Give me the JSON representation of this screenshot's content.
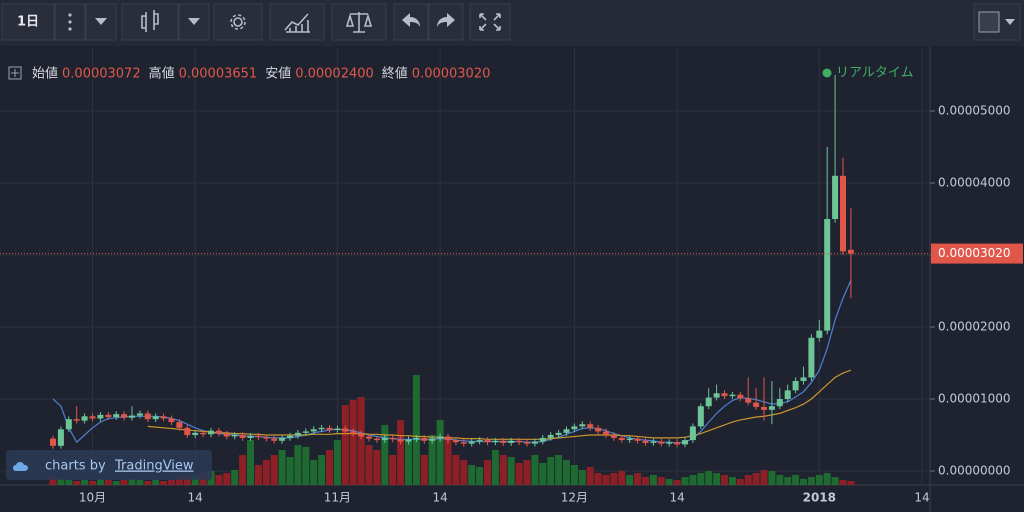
{
  "chart_data": {
    "type": "candlestick",
    "interval": "1日",
    "legend": [
      {
        "label": "始値",
        "value": "0.00003072"
      },
      {
        "label": "高値",
        "value": "0.00003651"
      },
      {
        "label": "安値",
        "value": "0.00002400"
      },
      {
        "label": "終値",
        "value": "0.00003020"
      }
    ],
    "realtime_label": "リアルタイム",
    "watermark": {
      "prefix": "charts by",
      "brand": "TradingView"
    },
    "last_price": {
      "value": 3.02e-05,
      "label": "0.00003020"
    },
    "up_color": "#6cc497",
    "down_color": "#e0574a",
    "volume_up_color": "#1f6a30",
    "volume_down_color": "#8d2026",
    "grid": true,
    "ylim": [
      -1.94e-06,
      5.875e-05
    ],
    "yticks": [
      {
        "value": 0,
        "label": "0.00000000"
      },
      {
        "value": 1e-05,
        "label": "0.00001000"
      },
      {
        "value": 2e-05,
        "label": "0.00002000"
      },
      {
        "value": 3e-05,
        "label": "0.00003000"
      },
      {
        "value": 4e-05,
        "label": "0.00004000"
      },
      {
        "value": 5e-05,
        "label": "0.00005000"
      }
    ],
    "categories": [
      null,
      null,
      null,
      null,
      null,
      "10月",
      null,
      null,
      null,
      null,
      null,
      null,
      null,
      null,
      null,
      null,
      null,
      null,
      "14",
      null,
      null,
      null,
      null,
      null,
      null,
      null,
      null,
      null,
      null,
      null,
      null,
      null,
      null,
      null,
      null,
      null,
      "11月",
      null,
      null,
      null,
      null,
      null,
      null,
      null,
      null,
      null,
      null,
      null,
      null,
      "14",
      null,
      null,
      null,
      null,
      null,
      null,
      null,
      null,
      null,
      null,
      null,
      null,
      null,
      null,
      null,
      null,
      "12月",
      null,
      null,
      null,
      null,
      null,
      null,
      null,
      null,
      null,
      null,
      null,
      null,
      "14",
      null,
      null,
      null,
      null,
      null,
      null,
      null,
      null,
      null,
      null,
      null,
      null,
      null,
      null,
      null,
      null,
      null,
      "2018",
      null,
      null,
      null,
      null,
      null,
      null,
      null,
      null,
      null,
      null,
      null,
      null,
      "14"
    ],
    "open": [
      4.5e-06,
      3.5e-06,
      5.8e-06,
      7.2e-06,
      7e-06,
      7.6e-06,
      7.3e-06,
      7.8e-06,
      7.5e-06,
      7.9e-06,
      7.4e-06,
      7.7e-06,
      8e-06,
      7.2e-06,
      7.6e-06,
      7.3e-06,
      6.8e-06,
      6e-06,
      5e-06,
      5.3e-06,
      5.1e-06,
      5.6e-06,
      5.2e-06,
      4.8e-06,
      5e-06,
      4.6e-06,
      4.9e-06,
      4.7e-06,
      4.5e-06,
      4.2e-06,
      4.6e-06,
      4.9e-06,
      5.3e-06,
      5.5e-06,
      5.8e-06,
      6e-06,
      5.7e-06,
      5.9e-06,
      5.5e-06,
      5.2e-06,
      4.8e-06,
      4.5e-06,
      4.3e-06,
      4.6e-06,
      4.4e-06,
      4.1e-06,
      4.4e-06,
      4.6e-06,
      4.2e-06,
      4.5e-06,
      4.8e-06,
      4.3e-06,
      4e-06,
      3.8e-06,
      4.1e-06,
      4.3e-06,
      4e-06,
      4.2e-06,
      3.9e-06,
      4.2e-06,
      4e-06,
      3.8e-06,
      4.1e-06,
      4.6e-06,
      5e-06,
      5.3e-06,
      5.8e-06,
      6.2e-06,
      6.5e-06,
      6e-06,
      5.5e-06,
      5e-06,
      4.6e-06,
      4.3e-06,
      4.5e-06,
      4.2e-06,
      3.9e-06,
      4.1e-06,
      3.8e-06,
      4e-06,
      3.7e-06,
      4.3e-06,
      6.2e-06,
      9e-06,
      1.02e-05,
      1.08e-05,
      1.04e-05,
      1.06e-05,
      1.01e-05,
      9.5e-06,
      8.9e-06,
      8.5e-06,
      9e-06,
      1e-05,
      1.12e-05,
      1.25e-05,
      1.3e-05,
      1.85e-05,
      1.95e-05,
      3.5e-05,
      4.1e-05,
      3.072e-05,
      null,
      null,
      null,
      null,
      null,
      null,
      null,
      null,
      null
    ],
    "high": [
      4.9e-06,
      6.2e-06,
      7.6e-06,
      9e-06,
      8e-06,
      8e-06,
      8.2e-06,
      8.2e-06,
      8.3e-06,
      8.3e-06,
      9e-06,
      8.4e-06,
      8.4e-06,
      8e-06,
      8e-06,
      7.7e-06,
      7.2e-06,
      6.4e-06,
      5.7e-06,
      5.7e-06,
      6e-06,
      6e-06,
      5.6e-06,
      5.4e-06,
      5.4e-06,
      5.3e-06,
      5.3e-06,
      5.1e-06,
      4.9e-06,
      5e-06,
      5.3e-06,
      5.7e-06,
      5.9e-06,
      6.2e-06,
      6.4e-06,
      6.4e-06,
      6.3e-06,
      6.3e-06,
      5.9e-06,
      5.6e-06,
      5.2e-06,
      4.9e-06,
      5e-06,
      5e-06,
      4.8e-06,
      4.8e-06,
      5e-06,
      5e-06,
      4.9e-06,
      5.2e-06,
      5.2e-06,
      4.7e-06,
      4.4e-06,
      4.5e-06,
      4.7e-06,
      4.7e-06,
      4.6e-06,
      4.6e-06,
      4.6e-06,
      4.6e-06,
      4.4e-06,
      4.5e-06,
      5e-06,
      5.4e-06,
      5.7e-06,
      6.2e-06,
      6.6e-06,
      6.9e-06,
      6.9e-06,
      6.4e-06,
      5.9e-06,
      5.4e-06,
      5e-06,
      4.9e-06,
      4.9e-06,
      4.6e-06,
      4.5e-06,
      4.5e-06,
      4.4e-06,
      4.4e-06,
      4.7e-06,
      6.6e-06,
      9.4e-06,
      1.15e-05,
      1.2e-05,
      1.12e-05,
      1.1e-05,
      1.1e-05,
      1.3e-05,
      1.15e-05,
      1.3e-05,
      1.25e-05,
      1.15e-05,
      1.2e-05,
      1.3e-05,
      1.45e-05,
      1.9e-05,
      2.1e-05,
      4.5e-05,
      5.5e-05,
      4.35e-05,
      3.651e-05,
      null,
      null,
      null,
      null,
      null,
      null,
      null,
      null,
      null
    ],
    "low": [
      3.1e-06,
      3.1e-06,
      5.4e-06,
      6.6e-06,
      6.6e-06,
      6.9e-06,
      6.9e-06,
      7.1e-06,
      7.1e-06,
      7e-06,
      7e-06,
      7.3e-06,
      6.8e-06,
      6.8e-06,
      6.9e-06,
      6.4e-06,
      5.6e-06,
      4.6e-06,
      4.6e-06,
      4.7e-06,
      4.7e-06,
      4.8e-06,
      4.4e-06,
      4.4e-06,
      4.2e-06,
      4.2e-06,
      4.3e-06,
      4.1e-06,
      3.8e-06,
      3.8e-06,
      4.2e-06,
      4.5e-06,
      4.9e-06,
      5.1e-06,
      5.4e-06,
      5.3e-06,
      5.3e-06,
      5.1e-06,
      4.8e-06,
      4.4e-06,
      4.1e-06,
      3.9e-06,
      3.9e-06,
      4e-06,
      3.7e-06,
      3.7e-06,
      4e-06,
      3.8e-06,
      3.8e-06,
      4.1e-06,
      3.9e-06,
      3.6e-06,
      3.4e-06,
      3.4e-06,
      3.7e-06,
      3.6e-06,
      3.6e-06,
      3.5e-06,
      3.5e-06,
      3.6e-06,
      3.4e-06,
      3.4e-06,
      3.7e-06,
      4.2e-06,
      4.6e-06,
      4.9e-06,
      5.4e-06,
      5.8e-06,
      5.6e-06,
      5.1e-06,
      4.6e-06,
      4.2e-06,
      3.9e-06,
      3.9e-06,
      3.8e-06,
      3.5e-06,
      3.5e-06,
      3.4e-06,
      3.4e-06,
      3.3e-06,
      3.3e-06,
      3.9e-06,
      5.8e-06,
      8.6e-06,
      9.8e-06,
      1e-05,
      1e-05,
      9.7e-06,
      9.1e-06,
      8.5e-06,
      7e-06,
      6.5e-06,
      8.6e-06,
      9.6e-06,
      1.08e-05,
      1.2e-05,
      1.25e-05,
      1.8e-05,
      1.9e-05,
      3.45e-05,
      3e-05,
      2.4e-05,
      null,
      null,
      null,
      null,
      null,
      null,
      null,
      null,
      null
    ],
    "close": [
      3.5e-06,
      5.8e-06,
      7.2e-06,
      7e-06,
      7.6e-06,
      7.3e-06,
      7.8e-06,
      7.5e-06,
      7.9e-06,
      7.4e-06,
      7.7e-06,
      8e-06,
      7.2e-06,
      7.6e-06,
      7.3e-06,
      6.8e-06,
      6e-06,
      5e-06,
      5.3e-06,
      5.1e-06,
      5.6e-06,
      5.2e-06,
      4.8e-06,
      5e-06,
      4.6e-06,
      4.9e-06,
      4.7e-06,
      4.5e-06,
      4.2e-06,
      4.6e-06,
      4.9e-06,
      5.3e-06,
      5.5e-06,
      5.8e-06,
      6e-06,
      5.7e-06,
      5.9e-06,
      5.5e-06,
      5.2e-06,
      4.8e-06,
      4.5e-06,
      4.3e-06,
      4.6e-06,
      4.4e-06,
      4.1e-06,
      4.4e-06,
      4.6e-06,
      4.2e-06,
      4.5e-06,
      4.8e-06,
      4.3e-06,
      4e-06,
      3.8e-06,
      4.1e-06,
      4.3e-06,
      4e-06,
      4.2e-06,
      3.9e-06,
      4.2e-06,
      4e-06,
      3.8e-06,
      4.1e-06,
      4.6e-06,
      5e-06,
      5.3e-06,
      5.8e-06,
      6.2e-06,
      6.5e-06,
      6e-06,
      5.5e-06,
      5e-06,
      4.6e-06,
      4.3e-06,
      4.5e-06,
      4.2e-06,
      3.9e-06,
      4.1e-06,
      3.8e-06,
      4e-06,
      3.7e-06,
      4.3e-06,
      6.2e-06,
      9e-06,
      1.02e-05,
      1.08e-05,
      1.04e-05,
      1.06e-05,
      1.01e-05,
      9.5e-06,
      8.9e-06,
      8.5e-06,
      9e-06,
      1e-05,
      1.12e-05,
      1.25e-05,
      1.3e-05,
      1.85e-05,
      1.95e-05,
      3.5e-05,
      4.1e-05,
      3.05e-05,
      3.02e-05,
      null,
      null,
      null,
      null,
      null,
      null,
      null,
      null,
      null
    ],
    "volume": [
      8,
      6,
      5,
      4,
      5,
      4,
      6,
      5,
      4,
      5,
      6,
      5,
      4,
      5,
      4,
      6,
      8,
      10,
      9,
      12,
      14,
      10,
      12,
      15,
      30,
      45,
      20,
      25,
      30,
      35,
      28,
      40,
      38,
      25,
      30,
      35,
      45,
      80,
      85,
      88,
      40,
      35,
      60,
      30,
      65,
      45,
      110,
      30,
      50,
      65,
      48,
      30,
      25,
      20,
      18,
      25,
      35,
      30,
      28,
      22,
      25,
      30,
      22,
      28,
      30,
      25,
      20,
      15,
      18,
      12,
      10,
      12,
      14,
      10,
      12,
      8,
      10,
      8,
      6,
      5,
      8,
      10,
      12,
      14,
      12,
      10,
      8,
      6,
      10,
      12,
      15,
      14,
      10,
      8,
      10,
      6,
      8,
      10,
      12,
      8,
      5,
      4,
      null,
      null,
      null,
      null,
      null,
      null,
      null,
      null,
      null
    ],
    "series": [
      {
        "color": "#4f7fd6",
        "values": [
          1e-05,
          9e-06,
          6e-06,
          4e-06,
          5e-06,
          6e-06,
          6.8e-06,
          7.3e-06,
          7.4e-06,
          7.5e-06,
          7.6e-06,
          7.6e-06,
          7.6e-06,
          7.6e-06,
          7.5e-06,
          7.3e-06,
          7e-06,
          6.5e-06,
          6e-06,
          5.6e-06,
          5.4e-06,
          5.2e-06,
          5.1e-06,
          5e-06,
          4.9e-06,
          4.8e-06,
          4.8e-06,
          4.7e-06,
          4.6e-06,
          4.6e-06,
          4.6e-06,
          4.8e-06,
          5e-06,
          5.3e-06,
          5.5e-06,
          5.7e-06,
          5.8e-06,
          5.7e-06,
          5.6e-06,
          5.3e-06,
          5e-06,
          4.8e-06,
          4.6e-06,
          4.5e-06,
          4.4e-06,
          4.4e-06,
          4.4e-06,
          4.4e-06,
          4.4e-06,
          4.5e-06,
          4.5e-06,
          4.3e-06,
          4.2e-06,
          4.1e-06,
          4.1e-06,
          4.1e-06,
          4.1e-06,
          4.1e-06,
          4.1e-06,
          4.1e-06,
          4e-06,
          4e-06,
          4.1e-06,
          4.4e-06,
          4.7e-06,
          5.1e-06,
          5.5e-06,
          5.9e-06,
          6e-06,
          5.9e-06,
          5.6e-06,
          5.2e-06,
          4.9e-06,
          4.6e-06,
          4.4e-06,
          4.3e-06,
          4.2e-06,
          4e-06,
          4e-06,
          3.9e-06,
          4e-06,
          4.5e-06,
          5.5e-06,
          6.8e-06,
          8e-06,
          9e-06,
          9.8e-06,
          1.02e-05,
          1.01e-05,
          9.9e-06,
          9.6e-06,
          9.3e-06,
          9.4e-06,
          9.6e-06,
          1.03e-05,
          1.1e-05,
          1.23e-05,
          1.4e-05,
          1.7e-05,
          2.1e-05,
          2.4e-05,
          2.65e-05,
          null,
          null,
          null,
          null,
          null,
          null,
          null,
          null,
          null
        ]
      },
      {
        "color": "#c9962e",
        "values": [
          null,
          null,
          null,
          null,
          null,
          null,
          null,
          null,
          null,
          null,
          null,
          null,
          6.2e-06,
          6.1e-06,
          6e-06,
          5.9e-06,
          5.8e-06,
          5.7e-06,
          5.6e-06,
          5.5e-06,
          5.4e-06,
          5.3e-06,
          5.3e-06,
          5.2e-06,
          5.2e-06,
          5.1e-06,
          5.1e-06,
          5e-06,
          5e-06,
          5e-06,
          5e-06,
          5e-06,
          5e-06,
          5.1e-06,
          5.1e-06,
          5.1e-06,
          5.2e-06,
          5.2e-06,
          5.2e-06,
          5.2e-06,
          5.1e-06,
          5.1e-06,
          5e-06,
          5e-06,
          4.9e-06,
          4.9e-06,
          4.8e-06,
          4.8e-06,
          4.7e-06,
          4.7e-06,
          4.6e-06,
          4.6e-06,
          4.5e-06,
          4.5e-06,
          4.5e-06,
          4.4e-06,
          4.4e-06,
          4.4e-06,
          4.4e-06,
          4.4e-06,
          4.4e-06,
          4.4e-06,
          4.4e-06,
          4.5e-06,
          4.6e-06,
          4.7e-06,
          4.8e-06,
          4.9e-06,
          5e-06,
          5e-06,
          5e-06,
          5e-06,
          4.9e-06,
          4.9e-06,
          4.8e-06,
          4.7e-06,
          4.6e-06,
          4.6e-06,
          4.6e-06,
          4.6e-06,
          4.7e-06,
          4.9e-06,
          5.2e-06,
          5.6e-06,
          6e-06,
          6.4e-06,
          6.8e-06,
          7.1e-06,
          7.3e-06,
          7.5e-06,
          7.6e-06,
          7.8e-06,
          8e-06,
          8.4e-06,
          8.8e-06,
          9.3e-06,
          1e-05,
          1.1e-05,
          1.2e-05,
          1.3e-05,
          1.36e-05,
          1.4e-05,
          null,
          null,
          null,
          null,
          null,
          null,
          null,
          null,
          null
        ]
      }
    ]
  }
}
